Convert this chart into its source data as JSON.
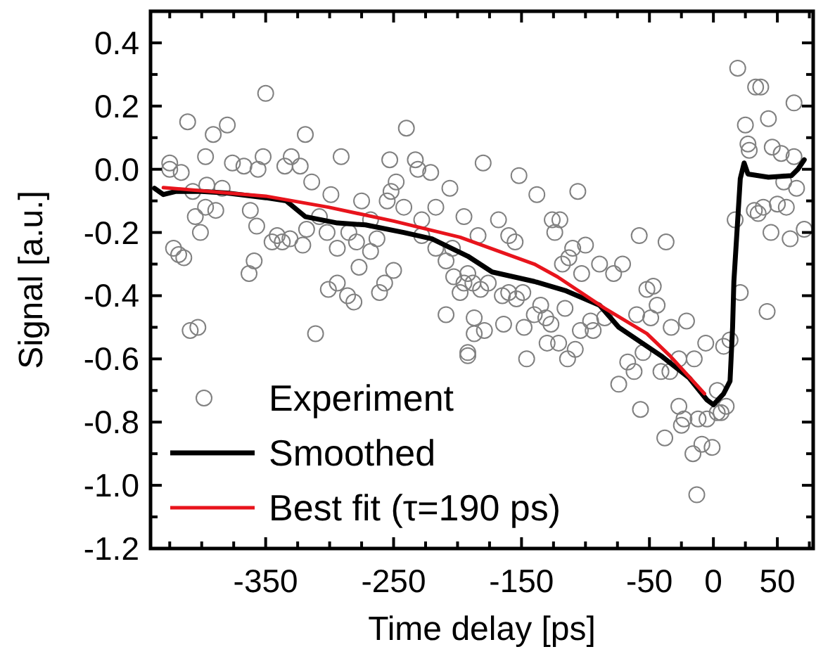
{
  "chart_data": {
    "type": "scatter",
    "xlabel": "Time delay [ps]",
    "ylabel": "Signal [a.u.]",
    "xlim": [
      -440,
      78
    ],
    "ylim": [
      -1.2,
      0.5
    ],
    "xticks": [
      {
        "value": -425,
        "label": null
      },
      {
        "value": -400,
        "label": null
      },
      {
        "value": -375,
        "label": null
      },
      -350,
      {
        "value": -325,
        "label": null
      },
      {
        "value": -300,
        "label": null
      },
      {
        "value": -275,
        "label": null
      },
      -250,
      {
        "value": -225,
        "label": null
      },
      {
        "value": -200,
        "label": null
      },
      {
        "value": -175,
        "label": null
      },
      -150,
      {
        "value": -125,
        "label": null
      },
      {
        "value": -100,
        "label": null
      },
      {
        "value": -75,
        "label": null
      },
      -50,
      {
        "value": -25,
        "label": null
      },
      0,
      {
        "value": 25,
        "label": null
      },
      50,
      {
        "value": 75,
        "label": null
      }
    ],
    "yticks": [
      {
        "value": -1.2,
        "label": "-1.2"
      },
      {
        "value": -1.1,
        "label": null
      },
      {
        "value": -1,
        "label": "-1.0"
      },
      {
        "value": -0.9,
        "label": null
      },
      -0.8,
      {
        "value": -0.7,
        "label": null
      },
      -0.6,
      {
        "value": -0.5,
        "label": null
      },
      -0.4,
      {
        "value": -0.3,
        "label": null
      },
      -0.2,
      {
        "value": -0.1,
        "label": null
      },
      {
        "value": 0,
        "label": "0.0"
      },
      {
        "value": 0.1,
        "label": null
      },
      0.2,
      {
        "value": 0.3,
        "label": null
      },
      0.4
    ],
    "grid": false,
    "legend": "bottom left",
    "series": [
      {
        "name": "Experiment",
        "color": "#808080",
        "marker": "circle",
        "x": [
          -350,
          -411,
          -380,
          -391,
          -319,
          -240,
          -425,
          -425,
          -416,
          -397,
          -376,
          -367,
          -352,
          -356,
          -335,
          -330,
          -323,
          -291,
          -314,
          -253,
          -233,
          -231,
          -221,
          -248,
          -252,
          -255,
          -206,
          -396,
          -407,
          -384,
          -405,
          -397,
          -389,
          -401,
          -362,
          -357,
          -345,
          -341,
          -337,
          -331,
          -321,
          -422,
          -418,
          -414,
          -359,
          -363,
          -318,
          -308,
          -299,
          -302,
          -294,
          -285,
          -279,
          -275,
          -268,
          -263,
          -268,
          -277,
          -294,
          -301,
          -286,
          -281,
          -250,
          -257,
          -261,
          -242,
          -228,
          -217,
          -228,
          -217,
          -209,
          -204,
          -195,
          -203,
          -195,
          -198,
          -209,
          -187,
          -409,
          -403,
          -311,
          -187,
          -192,
          19,
          33,
          37,
          63,
          43,
          25,
          27,
          28,
          46,
          53,
          63,
          55,
          65,
          32,
          35,
          39,
          50,
          57,
          17,
          45,
          60,
          71,
          21,
          42,
          -180,
          -152,
          -138,
          -106,
          -168,
          -184,
          -160,
          -155,
          -126,
          -120,
          -124,
          -100,
          -110,
          -113,
          -118,
          -89,
          -71,
          -78,
          -103,
          -58,
          -37,
          -192,
          -188,
          -176,
          -182,
          -165,
          -160,
          -154,
          -149,
          -179,
          -164,
          -148,
          -140,
          -135,
          -131,
          -127,
          -116,
          -104,
          -96,
          -94,
          -85,
          -52,
          -47,
          -44,
          -49,
          -60,
          -33,
          -21,
          -192,
          -146,
          -130,
          -121,
          -114,
          -108,
          -74,
          -67,
          -62,
          -57,
          -55,
          -41,
          -34,
          -27,
          -15,
          -6,
          8,
          13,
          -27,
          -23,
          -25,
          -12,
          -5,
          3,
          6,
          10,
          3,
          -38,
          -9,
          -1,
          -16,
          -13
        ],
        "values": [
          0.24,
          0.15,
          0.14,
          0.11,
          0.11,
          0.13,
          0.02,
          0.0,
          -0.01,
          0.04,
          0.02,
          0.01,
          0.04,
          0.0,
          0.01,
          0.04,
          0.01,
          0.04,
          -0.04,
          0.03,
          0.03,
          0.0,
          -0.01,
          -0.04,
          -0.07,
          -0.1,
          -0.06,
          -0.05,
          -0.07,
          -0.06,
          -0.15,
          -0.12,
          -0.13,
          -0.2,
          -0.13,
          -0.18,
          -0.23,
          -0.21,
          -0.23,
          -0.22,
          -0.24,
          -0.25,
          -0.27,
          -0.28,
          -0.29,
          -0.33,
          -0.19,
          -0.15,
          -0.08,
          -0.2,
          -0.25,
          -0.2,
          -0.23,
          -0.1,
          -0.16,
          -0.22,
          -0.26,
          -0.31,
          -0.36,
          -0.38,
          -0.4,
          -0.42,
          -0.32,
          -0.36,
          -0.39,
          -0.12,
          -0.16,
          -0.12,
          -0.21,
          -0.25,
          -0.29,
          -0.25,
          -0.15,
          -0.34,
          -0.36,
          -0.39,
          -0.46,
          -0.47,
          -0.51,
          -0.5,
          -0.52,
          -0.52,
          -0.58,
          0.32,
          0.26,
          0.26,
          0.21,
          0.16,
          0.14,
          0.08,
          0.06,
          0.07,
          0.05,
          0.04,
          -0.04,
          -0.06,
          -0.13,
          -0.14,
          -0.12,
          -0.11,
          -0.12,
          -0.16,
          -0.2,
          -0.22,
          -0.19,
          -0.39,
          -0.45,
          0.02,
          -0.02,
          -0.08,
          -0.07,
          -0.16,
          -0.21,
          -0.21,
          -0.23,
          -0.16,
          -0.16,
          -0.2,
          -0.24,
          -0.25,
          -0.28,
          -0.3,
          -0.3,
          -0.3,
          -0.33,
          -0.33,
          -0.21,
          -0.23,
          -0.33,
          -0.36,
          -0.36,
          -0.38,
          -0.4,
          -0.39,
          -0.41,
          -0.39,
          -0.51,
          -0.49,
          -0.5,
          -0.46,
          -0.43,
          -0.47,
          -0.49,
          -0.44,
          -0.51,
          -0.48,
          -0.51,
          -0.47,
          -0.38,
          -0.37,
          -0.43,
          -0.47,
          -0.46,
          -0.5,
          -0.48,
          -0.59,
          -0.6,
          -0.55,
          -0.55,
          -0.6,
          -0.57,
          -0.68,
          -0.61,
          -0.64,
          -0.76,
          -0.58,
          -0.64,
          -0.64,
          -0.6,
          -0.6,
          -0.55,
          -0.56,
          -0.54,
          -0.75,
          -0.79,
          -0.81,
          -0.79,
          -0.79,
          -0.77,
          -0.77,
          -0.75,
          -0.7,
          -0.85,
          -0.87,
          -0.88,
          -0.9,
          -1.03
        ]
      },
      {
        "name": "Smoothed",
        "type": "line",
        "color": "#000000",
        "marker": "none",
        "x": [
          -437,
          -430,
          -420,
          -400,
          -380,
          -350,
          -334,
          -319,
          -294,
          -272,
          -242,
          -220,
          -192,
          -173,
          -140,
          -115,
          -89,
          -74,
          -41,
          -19,
          -5,
          0,
          8,
          13,
          15,
          16,
          21,
          24,
          27,
          43,
          61,
          66,
          71
        ],
        "values": [
          -0.06,
          -0.08,
          -0.07,
          -0.07,
          -0.075,
          -0.09,
          -0.1,
          -0.15,
          -0.17,
          -0.176,
          -0.2,
          -0.22,
          -0.275,
          -0.325,
          -0.355,
          -0.385,
          -0.43,
          -0.5,
          -0.59,
          -0.66,
          -0.73,
          -0.745,
          -0.71,
          -0.67,
          -0.5,
          -0.355,
          -0.03,
          0.02,
          -0.015,
          -0.025,
          -0.02,
          0.0,
          0.03
        ]
      },
      {
        "name": "Best fit (τ=190 ps)",
        "type": "line",
        "color": "#e8141c",
        "marker": "none",
        "x": [
          -430,
          -350,
          -301,
          -250,
          -198,
          -140,
          -122,
          -85,
          -52,
          -34,
          -7
        ],
        "values": [
          -0.058,
          -0.085,
          -0.12,
          -0.164,
          -0.215,
          -0.3,
          -0.34,
          -0.44,
          -0.52,
          -0.59,
          -0.71
        ]
      }
    ]
  }
}
